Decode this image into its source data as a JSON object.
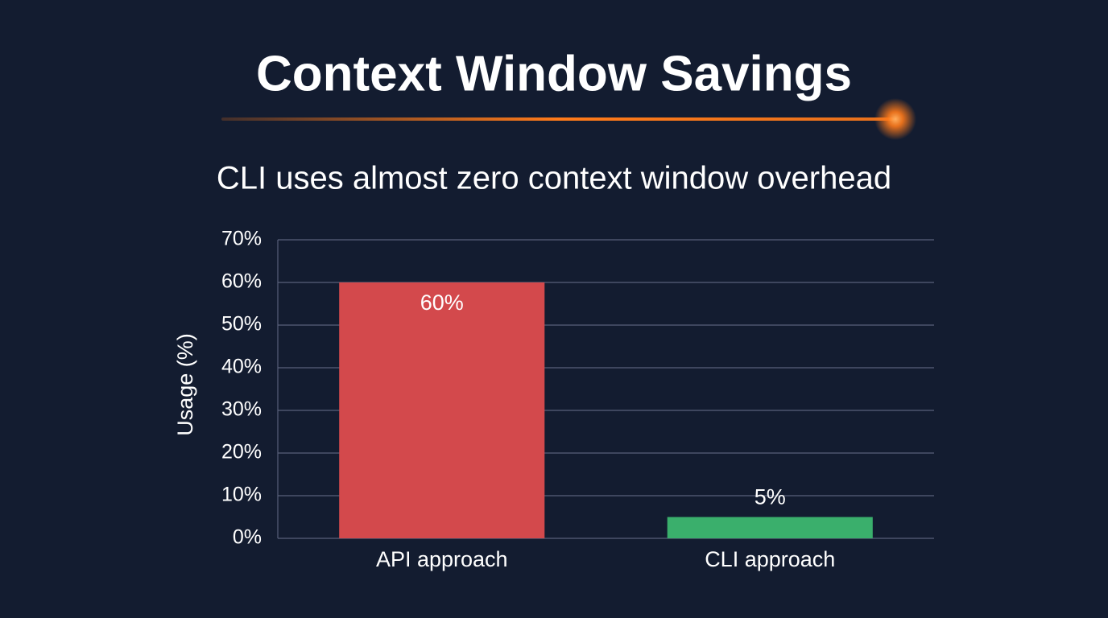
{
  "chart_data": {
    "type": "bar",
    "title": "Context Window Savings",
    "subtitle": "CLI uses almost zero context window overhead",
    "ylabel": "Usage (%)",
    "categories": [
      "API approach",
      "CLI approach"
    ],
    "values": [
      60,
      5
    ],
    "value_labels": [
      "60%",
      "5%"
    ],
    "colors": [
      "#d3494c",
      "#3aaf6c"
    ],
    "ylim": [
      0,
      70
    ],
    "yticks": [
      {
        "value": 0,
        "label": "0%"
      },
      {
        "value": 10,
        "label": "10%"
      },
      {
        "value": 20,
        "label": "20%"
      },
      {
        "value": 30,
        "label": "30%"
      },
      {
        "value": 40,
        "label": "40%"
      },
      {
        "value": 50,
        "label": "50%"
      },
      {
        "value": 60,
        "label": "60%"
      },
      {
        "value": 70,
        "label": "70%"
      }
    ],
    "grid": true
  }
}
